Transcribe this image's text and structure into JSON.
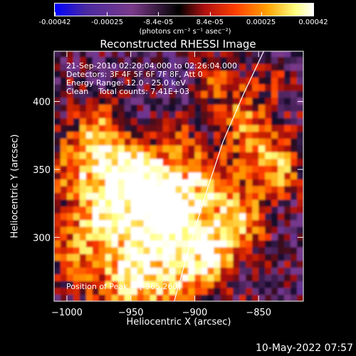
{
  "colorbar": {
    "ticks": [
      "-0.00042",
      "-0.00025",
      "-8.4e-05",
      "8.4e-05",
      "0.00025",
      "0.00042"
    ],
    "tick_values": [
      -0.00042,
      -0.00025,
      -8.4e-05,
      8.4e-05,
      0.00025,
      0.00042
    ],
    "range": [
      -0.00042,
      0.00042
    ],
    "units_label": "(photons cm⁻² s⁻¹ asec⁻²)"
  },
  "title": "Reconstructed RHESSI Image",
  "info": {
    "time": "21-Sep-2010 02:20:04.000 to 02:26:04.000",
    "detectors": "Detectors: 3F 4F 5F 6F 7F 8F, Att 0",
    "energy": "Energy Range: 12.0 - 25.0 keV",
    "clean": "Clean    Total counts: 7.41E+03",
    "peak": "Position of Peak = [-965,260]"
  },
  "footer_date": "10-May-2022 07:57",
  "colors": {
    "background": "#000000",
    "text": "#ffffff",
    "colormap": [
      "#0000ff",
      "#4a2aa0",
      "#7a3a8a",
      "#000000",
      "#b01010",
      "#ff4000",
      "#ffa000",
      "#ffff80",
      "#ffffff"
    ]
  },
  "chart_data": {
    "type": "heatmap",
    "title": "Reconstructed RHESSI Image",
    "xlabel": "Heliocentric X (arcsec)",
    "ylabel": "Heliocentric Y (arcsec)",
    "xlim": [
      -1010,
      -815
    ],
    "ylim": [
      253,
      437
    ],
    "xticks": [
      -1000,
      -950,
      -900,
      -850
    ],
    "xtick_labels": [
      "−1000",
      "−950",
      "−900",
      "−850"
    ],
    "yticks": [
      300,
      350,
      400
    ],
    "ytick_labels": [
      "300",
      "350",
      "400"
    ],
    "limb": [
      [
        -916,
        253
      ],
      [
        -905,
        290
      ],
      [
        -892,
        330
      ],
      [
        -878,
        370
      ],
      [
        -862,
        405
      ],
      [
        -846,
        437
      ]
    ],
    "peak": [
      -965,
      260
    ],
    "bright_regions": [
      {
        "x": -935,
        "y": 318,
        "level": 1.0
      },
      {
        "x": -968,
        "y": 345,
        "level": 0.8
      },
      {
        "x": -990,
        "y": 300,
        "level": 0.6
      },
      {
        "x": -880,
        "y": 305,
        "level": 0.8
      },
      {
        "x": -955,
        "y": 265,
        "level": 0.8
      },
      {
        "x": -910,
        "y": 275,
        "level": 0.7
      },
      {
        "x": -845,
        "y": 355,
        "level": 0.7
      },
      {
        "x": -870,
        "y": 405,
        "level": 0.5
      },
      {
        "x": -915,
        "y": 345,
        "level": 0.6
      },
      {
        "x": -985,
        "y": 370,
        "level": 0.5
      }
    ]
  }
}
